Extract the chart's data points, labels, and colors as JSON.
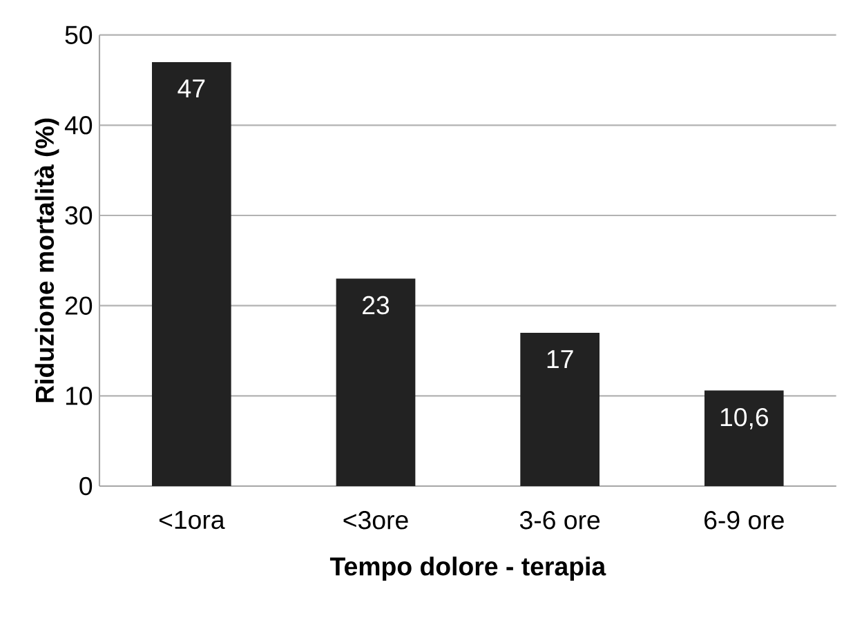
{
  "chart_data": {
    "type": "bar",
    "xlabel": "Tempo dolore - terapia",
    "ylabel": "Riduzione mortalità (%)",
    "categories": [
      "<1ora",
      "<3ore",
      "3-6 ore",
      "6-9 ore"
    ],
    "values": [
      47,
      23,
      17,
      10.6
    ],
    "value_labels": [
      "47",
      "23",
      "17",
      "10,6"
    ],
    "color": "#222222",
    "ylim": [
      0,
      50
    ],
    "yticks": [
      0,
      10,
      20,
      30,
      40,
      50
    ],
    "grid": "y"
  }
}
